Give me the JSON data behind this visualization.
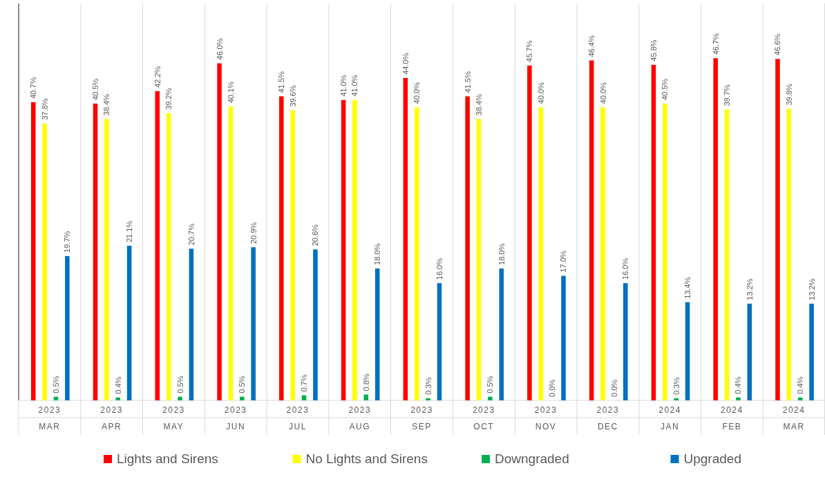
{
  "chart_data": {
    "type": "bar",
    "categories": [
      "2023 MAR",
      "2023 APR",
      "2023 MAY",
      "2023 JUN",
      "2023 JUL",
      "2023 AUG",
      "2023 SEP",
      "2023 OCT",
      "2023 NOV",
      "2023 DEC",
      "2024 JAN",
      "2024 FEB",
      "2024 MAR"
    ],
    "series": [
      {
        "name": "Lights and Sirens",
        "color": "#ff0000",
        "values": [
          40.7,
          40.5,
          42.2,
          46.0,
          41.5,
          41.0,
          44.0,
          41.5,
          45.7,
          46.4,
          45.8,
          46.7,
          46.6
        ],
        "value_labels": [
          "40.7%",
          "40.5%",
          "42.2%",
          "46.0%",
          "41.5%",
          "41.0%",
          "44.0%",
          "41.5%",
          "45.7%",
          "46.4%",
          "45.8%",
          "46.7%",
          "46.6%"
        ]
      },
      {
        "name": "No Lights and Sirens",
        "color": "#ffff00",
        "values": [
          37.8,
          38.4,
          39.2,
          40.1,
          39.6,
          41.0,
          40.0,
          38.4,
          40.0,
          40.0,
          40.5,
          39.7,
          39.8
        ],
        "value_labels": [
          "37.8%",
          "38.4%",
          "39.2%",
          "40.1%",
          "39.6%",
          "41.0%",
          "40.0%",
          "38.4%",
          "40.0%",
          "40.0%",
          "40.5%",
          "39.7%",
          "39.8%"
        ]
      },
      {
        "name": "Downgraded",
        "color": "#00b050",
        "values": [
          0.5,
          0.4,
          0.5,
          0.5,
          0.7,
          0.8,
          0.3,
          0.5,
          0.0,
          0.0,
          0.3,
          0.4,
          0.4
        ],
        "value_labels": [
          "0.5%",
          "0.4%",
          "0.5%",
          "0.5%",
          "0.7%",
          "0.8%",
          "0.3%",
          "0.5%",
          "0.0%",
          "0.0%",
          "0.3%",
          "0.4%",
          "0.4%"
        ]
      },
      {
        "name": "Upgraded",
        "color": "#0070c0",
        "values": [
          19.7,
          21.1,
          20.7,
          20.9,
          20.6,
          18.0,
          16.0,
          18.0,
          17.0,
          16.0,
          13.4,
          13.2,
          13.2
        ],
        "value_labels": [
          "19.7%",
          "21.1%",
          "20.7%",
          "20.9%",
          "20.6%",
          "18.0%",
          "16.0%",
          "18.0%",
          "17.0%",
          "16.0%",
          "13.4%",
          "13.2%",
          "13.2%"
        ]
      }
    ],
    "tick_labels": "x",
    "legend": "bottom"
  }
}
